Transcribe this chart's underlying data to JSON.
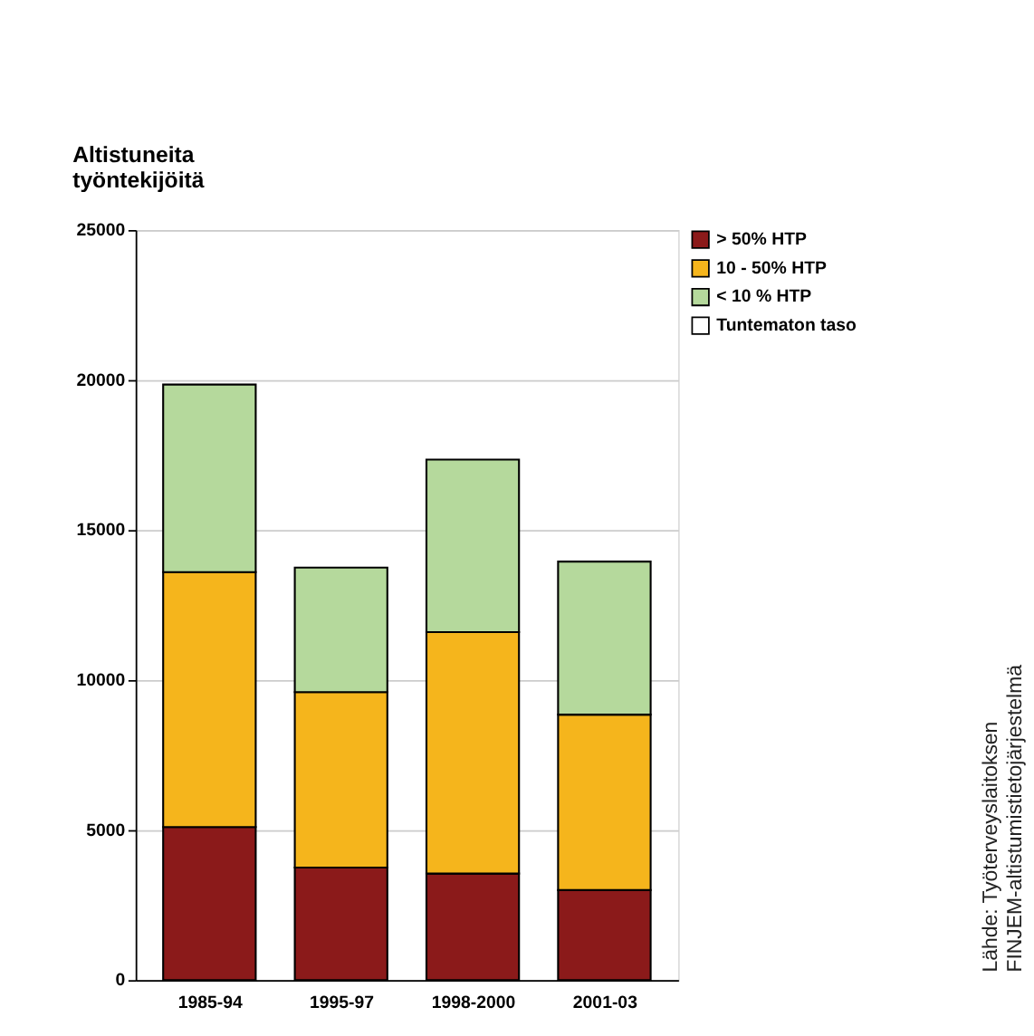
{
  "chart_data": {
    "type": "bar",
    "stacked": true,
    "ylabel": "Altistuneita työntekijöitä",
    "categories": [
      "1985-94",
      "1995-97",
      "1998-2000",
      "2001-03"
    ],
    "series": [
      {
        "name": "> 50% HTP",
        "color": "#8b1a1a",
        "values": [
          5100,
          3750,
          3550,
          3000
        ]
      },
      {
        "name": "10 - 50% HTP",
        "color": "#f5b51c",
        "values": [
          8500,
          5850,
          8050,
          5850
        ]
      },
      {
        "name": "< 10 % HTP",
        "color": "#b5d99c",
        "values": [
          6250,
          4150,
          5750,
          5100
        ]
      },
      {
        "name": "Tuntematon taso",
        "color": "#ffffff",
        "values": [
          null,
          null,
          null,
          null
        ]
      }
    ],
    "ylim": [
      0,
      25000
    ],
    "yticks": [
      0,
      5000,
      10000,
      15000,
      20000,
      25000
    ],
    "grid": "y",
    "legend": "right",
    "annotations": [
      "Lähde: Työterveyslaitoksen FINJEM-altistumistietojärjestelmä"
    ]
  }
}
